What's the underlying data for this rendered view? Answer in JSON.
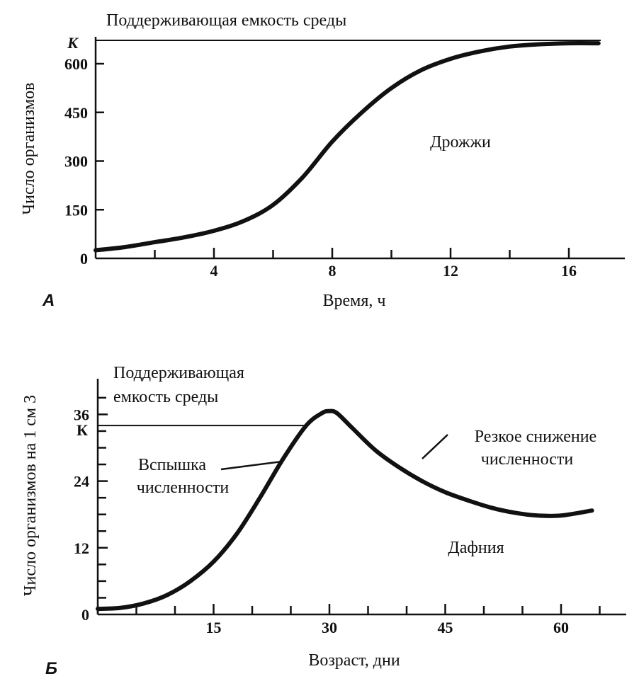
{
  "chart_data": [
    {
      "panel": "A",
      "type": "line",
      "title": "Поддерживающая емкость среды",
      "xlabel": "Время, ч",
      "ylabel": "Число организмов",
      "xlim": [
        0,
        18
      ],
      "ylim": [
        0,
        665
      ],
      "xticks_labeled": [
        4,
        8,
        12,
        16
      ],
      "xticks_minor": [
        2,
        6,
        10,
        14
      ],
      "yticks": [
        0,
        150,
        300,
        450,
        600
      ],
      "ytick_labels": [
        "0",
        "150",
        "300",
        "450",
        "600"
      ],
      "capacity": {
        "label": "К",
        "value": 663
      },
      "series": [
        {
          "name": "Дрожжи",
          "x": [
            0,
            1,
            2,
            3,
            4,
            5,
            6,
            7,
            8,
            9,
            10,
            11,
            12,
            13,
            14,
            15,
            16,
            17
          ],
          "values": [
            25,
            35,
            50,
            65,
            85,
            115,
            165,
            250,
            360,
            450,
            525,
            580,
            615,
            638,
            653,
            660,
            663,
            663
          ]
        }
      ],
      "annotations": [
        "Дрожжи"
      ]
    },
    {
      "panel": "Б",
      "type": "line",
      "title": "Поддерживающая емкость среды",
      "title_lines": [
        "Поддерживающая",
        "емкость среды"
      ],
      "xlabel": "Возраст, дни",
      "ylabel": "Число организмов на 1 см 3",
      "xlim": [
        0,
        68
      ],
      "ylim": [
        0,
        42
      ],
      "xticks_labeled": [
        15,
        30,
        45,
        60
      ],
      "xticks_minor": [
        0,
        5,
        10,
        20,
        25,
        35,
        40,
        50,
        55,
        65
      ],
      "yticks": [
        0,
        12,
        24,
        36
      ],
      "ytick_labels": [
        "0",
        "12",
        "24",
        "36"
      ],
      "yticks_minor": [
        3,
        6,
        9,
        15,
        18,
        21,
        27,
        30,
        33,
        39
      ],
      "capacity": {
        "label": "К",
        "value": 34
      },
      "series": [
        {
          "name": "Дафния",
          "x": [
            0,
            3,
            6,
            9,
            12,
            15,
            18,
            21,
            24,
            27,
            29,
            30,
            31,
            33,
            36,
            39,
            42,
            45,
            48,
            51,
            54,
            57,
            60,
            64
          ],
          "values": [
            1,
            1.2,
            2,
            3.5,
            6,
            9.5,
            14.5,
            21,
            28,
            34,
            36.2,
            36.6,
            36.2,
            33.5,
            29.5,
            26.5,
            24,
            22,
            20.5,
            19.2,
            18.3,
            17.8,
            17.8,
            18.7
          ]
        }
      ],
      "annotations": [
        {
          "id": "outbreak",
          "lines": [
            "Вспышка",
            "численности"
          ]
        },
        {
          "id": "crash",
          "lines": [
            "Резкое снижение",
            "численности"
          ]
        },
        {
          "id": "species",
          "lines": [
            "Дафния"
          ]
        }
      ]
    }
  ]
}
